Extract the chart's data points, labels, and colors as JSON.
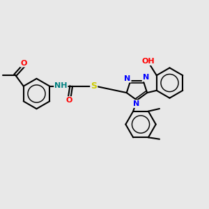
{
  "background_color": "#e8e8e8",
  "bond_color": "#000000",
  "bond_width": 1.5,
  "atom_colors": {
    "N": "#0000ff",
    "O": "#ff0000",
    "S": "#cccc00",
    "H_amide": "#008080",
    "H_hydroxyl": "#008080",
    "C": "#000000"
  }
}
